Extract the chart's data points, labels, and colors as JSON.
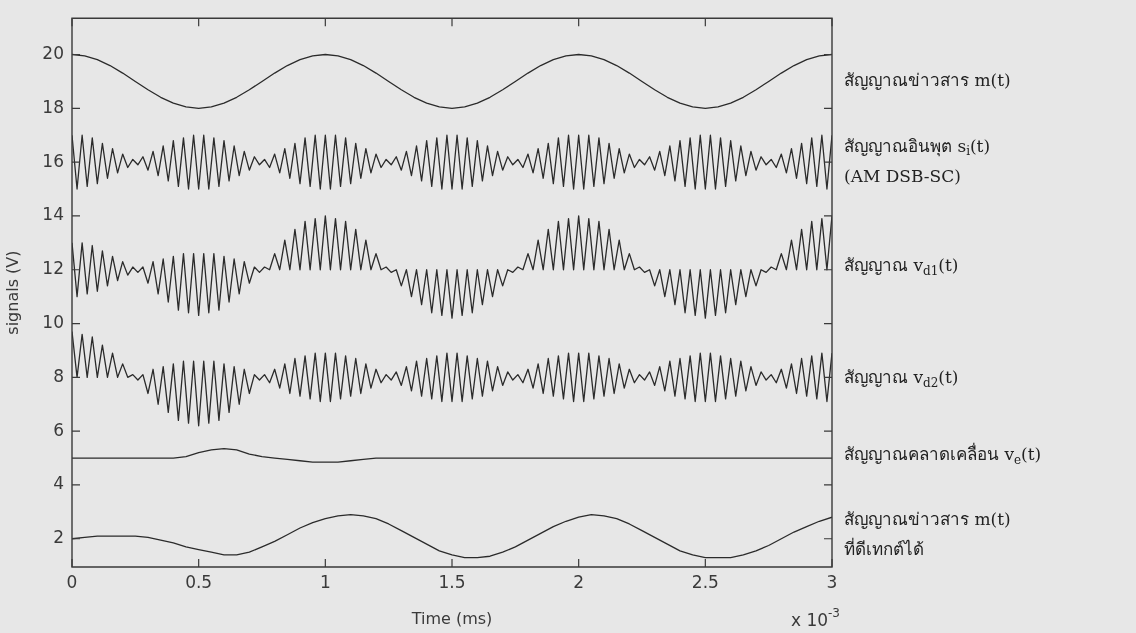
{
  "chart_data": {
    "type": "line",
    "xlabel": "Time (ms)",
    "ylabel": "signals (V)",
    "annotations": [
      "x 10$^{-3}$"
    ],
    "xlim": [
      0,
      3
    ],
    "xticks": [
      0,
      0.5,
      1,
      1.5,
      2,
      2.5,
      3
    ],
    "ylim": [
      0.95,
      21.35
    ],
    "yticks": [
      2,
      4,
      6,
      8,
      10,
      12,
      14,
      16,
      18,
      20
    ],
    "legend": "right",
    "x": [
      0,
      0.02,
      0.04,
      0.06,
      0.08,
      0.1,
      0.12,
      0.14,
      0.16,
      0.18,
      0.2,
      0.22,
      0.24,
      0.26,
      0.28,
      0.3,
      0.32,
      0.34,
      0.36,
      0.38,
      0.4,
      0.42,
      0.44,
      0.46,
      0.48,
      0.5,
      0.52,
      0.54,
      0.56,
      0.58,
      0.6,
      0.62,
      0.64,
      0.66,
      0.68,
      0.7,
      0.72,
      0.74,
      0.76,
      0.78,
      0.8,
      0.82,
      0.84,
      0.86,
      0.88,
      0.9,
      0.92,
      0.94,
      0.96,
      0.98,
      1,
      1.02,
      1.04,
      1.06,
      1.08,
      1.1,
      1.12,
      1.14,
      1.16,
      1.18,
      1.2,
      1.22,
      1.24,
      1.26,
      1.28,
      1.3,
      1.32,
      1.34,
      1.36,
      1.38,
      1.4,
      1.42,
      1.44,
      1.46,
      1.48,
      1.5,
      1.52,
      1.54,
      1.56,
      1.58,
      1.6,
      1.62,
      1.64,
      1.66,
      1.68,
      1.7,
      1.72,
      1.74,
      1.76,
      1.78,
      1.8,
      1.82,
      1.84,
      1.86,
      1.88,
      1.9,
      1.92,
      1.94,
      1.96,
      1.98,
      2,
      2.02,
      2.04,
      2.06,
      2.08,
      2.1,
      2.12,
      2.14,
      2.16,
      2.18,
      2.2,
      2.22,
      2.24,
      2.26,
      2.28,
      2.3,
      2.32,
      2.34,
      2.36,
      2.38,
      2.4,
      2.42,
      2.44,
      2.46,
      2.48,
      2.5,
      2.52,
      2.54,
      2.56,
      2.58,
      2.6,
      2.62,
      2.64,
      2.66,
      2.68,
      2.7,
      2.72,
      2.74,
      2.76,
      2.78,
      2.8,
      2.82,
      2.84,
      2.86,
      2.88,
      2.9,
      2.92,
      2.94,
      2.96,
      2.98,
      3
    ],
    "series": [
      {
        "name": "สัญญาณข่าวสาร m(t)",
        "color": "#2b2b2b",
        "x": [
          0,
          0.05,
          0.1,
          0.15,
          0.2,
          0.25,
          0.3,
          0.35,
          0.4,
          0.45,
          0.5,
          0.55,
          0.6,
          0.65,
          0.7,
          0.75,
          0.8,
          0.85,
          0.9,
          0.95,
          1,
          1.05,
          1.1,
          1.15,
          1.2,
          1.25,
          1.3,
          1.35,
          1.4,
          1.45,
          1.5,
          1.55,
          1.6,
          1.65,
          1.7,
          1.75,
          1.8,
          1.85,
          1.9,
          1.95,
          2,
          2.05,
          2.1,
          2.15,
          2.2,
          2.25,
          2.3,
          2.35,
          2.4,
          2.45,
          2.5,
          2.55,
          2.6,
          2.65,
          2.7,
          2.75,
          2.8,
          2.85,
          2.9,
          2.95,
          3
        ],
        "values": [
          20,
          19.95,
          19.81,
          19.59,
          19.31,
          19,
          18.69,
          18.41,
          18.19,
          18.05,
          18,
          18.05,
          18.19,
          18.41,
          18.69,
          19,
          19.31,
          19.59,
          19.81,
          19.95,
          20,
          19.95,
          19.81,
          19.59,
          19.31,
          19,
          18.69,
          18.41,
          18.19,
          18.05,
          18,
          18.05,
          18.19,
          18.41,
          18.69,
          19,
          19.31,
          19.59,
          19.81,
          19.95,
          20,
          19.95,
          19.81,
          19.59,
          19.31,
          19,
          18.69,
          18.41,
          18.19,
          18.05,
          18,
          18.05,
          18.19,
          18.41,
          18.69,
          19,
          19.31,
          19.59,
          19.81,
          19.95,
          20
        ]
      },
      {
        "name": "สัญญาณอินพุต s$_{i}$(t)\n(AM DSB-SC)",
        "color": "#2b2b2b",
        "values": [
          17,
          15,
          17,
          15.1,
          16.9,
          15.2,
          16.7,
          15.4,
          16.5,
          15.6,
          16.3,
          15.8,
          16.1,
          15.9,
          16.2,
          15.7,
          16.4,
          15.5,
          16.6,
          15.3,
          16.8,
          15.1,
          16.9,
          15,
          17,
          15,
          17,
          15,
          16.9,
          15.1,
          16.8,
          15.3,
          16.6,
          15.5,
          16.4,
          15.7,
          16.2,
          15.9,
          16.1,
          15.8,
          16.3,
          15.6,
          16.5,
          15.4,
          16.7,
          15.2,
          16.9,
          15.1,
          17,
          15,
          17,
          15,
          17,
          15.1,
          16.9,
          15.2,
          16.7,
          15.4,
          16.5,
          15.6,
          16.3,
          15.8,
          16.1,
          15.9,
          16.2,
          15.7,
          16.4,
          15.5,
          16.6,
          15.3,
          16.8,
          15.1,
          16.9,
          15,
          17,
          15,
          17,
          15,
          16.9,
          15.1,
          16.8,
          15.3,
          16.6,
          15.5,
          16.4,
          15.7,
          16.2,
          15.9,
          16.1,
          15.8,
          16.3,
          15.6,
          16.5,
          15.4,
          16.7,
          15.2,
          16.9,
          15.1,
          17,
          15,
          17,
          15,
          17,
          15.1,
          16.9,
          15.2,
          16.7,
          15.4,
          16.5,
          15.6,
          16.3,
          15.8,
          16.1,
          15.9,
          16.2,
          15.7,
          16.4,
          15.5,
          16.6,
          15.3,
          16.8,
          15.1,
          16.9,
          15,
          17,
          15,
          17,
          15,
          16.9,
          15.1,
          16.8,
          15.3,
          16.6,
          15.5,
          16.4,
          15.7,
          16.2,
          15.9,
          16.1,
          15.8,
          16.3,
          15.6,
          16.5,
          15.4,
          16.7,
          15.2,
          16.9,
          15.1,
          17,
          15,
          17
        ]
      },
      {
        "name": "สัญญาณ v$_{d1}$(t)",
        "color": "#2b2b2b",
        "values": [
          13,
          11,
          13,
          11.1,
          12.9,
          11.2,
          12.7,
          11.4,
          12.5,
          11.6,
          12.3,
          11.8,
          12.1,
          11.9,
          12.1,
          11.5,
          12.3,
          11.1,
          12.4,
          10.8,
          12.5,
          10.5,
          12.6,
          10.4,
          12.6,
          10.3,
          12.6,
          10.4,
          12.6,
          10.5,
          12.5,
          10.8,
          12.4,
          11.1,
          12.3,
          11.5,
          12.1,
          11.9,
          12.1,
          12,
          12.6,
          12,
          13.1,
          12,
          13.5,
          12,
          13.8,
          12,
          13.9,
          12,
          14,
          12,
          13.9,
          12,
          13.8,
          12,
          13.5,
          12,
          13.1,
          12,
          12.6,
          12,
          12.1,
          11.9,
          12,
          11.4,
          12,
          11,
          12,
          10.7,
          12,
          10.4,
          12,
          10.3,
          12,
          10.2,
          12,
          10.3,
          12,
          10.4,
          12,
          10.7,
          12,
          11,
          12,
          11.4,
          12,
          11.9,
          12.1,
          12,
          12.6,
          12,
          13.1,
          12,
          13.5,
          12,
          13.8,
          12,
          13.9,
          12,
          14,
          12,
          13.9,
          12,
          13.8,
          12,
          13.5,
          12,
          13.1,
          12,
          12.6,
          12,
          12.1,
          11.9,
          12,
          11.4,
          12,
          11,
          12,
          10.7,
          12,
          10.4,
          12,
          10.3,
          12,
          10.2,
          12,
          10.3,
          12,
          10.4,
          12,
          10.7,
          12,
          11,
          12,
          11.4,
          12,
          11.9,
          12.1,
          12,
          12.6,
          12,
          13.1,
          12,
          13.5,
          12,
          13.8,
          12,
          13.9,
          12,
          14
        ]
      },
      {
        "name": "สัญญาณ v$_{d2}$(t)",
        "color": "#2b2b2b",
        "values": [
          9.7,
          8,
          9.6,
          8,
          9.5,
          8,
          9.2,
          8,
          8.9,
          8,
          8.5,
          8,
          8.1,
          7.9,
          8.1,
          7.4,
          8.3,
          7,
          8.4,
          6.7,
          8.5,
          6.4,
          8.6,
          6.3,
          8.6,
          6.2,
          8.6,
          6.3,
          8.6,
          6.4,
          8.5,
          6.7,
          8.4,
          7,
          8.3,
          7.4,
          8.1,
          7.9,
          8.1,
          7.8,
          8.3,
          7.6,
          8.5,
          7.4,
          8.7,
          7.3,
          8.8,
          7.2,
          8.9,
          7.1,
          8.9,
          7.1,
          8.9,
          7.2,
          8.8,
          7.3,
          8.7,
          7.4,
          8.5,
          7.6,
          8.3,
          7.8,
          8.1,
          7.9,
          8.2,
          7.7,
          8.4,
          7.5,
          8.6,
          7.3,
          8.7,
          7.2,
          8.8,
          7.1,
          8.9,
          7.1,
          8.9,
          7.1,
          8.8,
          7.2,
          8.7,
          7.3,
          8.6,
          7.5,
          8.4,
          7.7,
          8.2,
          7.9,
          8.1,
          7.8,
          8.3,
          7.6,
          8.5,
          7.4,
          8.7,
          7.3,
          8.8,
          7.2,
          8.9,
          7.1,
          8.9,
          7.1,
          8.9,
          7.2,
          8.8,
          7.3,
          8.7,
          7.4,
          8.5,
          7.6,
          8.3,
          7.8,
          8.1,
          7.9,
          8.2,
          7.7,
          8.4,
          7.5,
          8.6,
          7.3,
          8.7,
          7.2,
          8.8,
          7.1,
          8.9,
          7.1,
          8.9,
          7.1,
          8.8,
          7.2,
          8.7,
          7.3,
          8.6,
          7.5,
          8.4,
          7.7,
          8.2,
          7.9,
          8.1,
          7.8,
          8.3,
          7.6,
          8.5,
          7.4,
          8.7,
          7.3,
          8.8,
          7.2,
          8.9,
          7.1,
          8.9
        ]
      },
      {
        "name": "สัญญาณคลาดเคลื่อน v$_{e}$(t)",
        "color": "#2b2b2b",
        "x": [
          0,
          0.05,
          0.1,
          0.15,
          0.2,
          0.25,
          0.3,
          0.35,
          0.4,
          0.45,
          0.5,
          0.55,
          0.6,
          0.65,
          0.7,
          0.75,
          0.8,
          0.85,
          0.9,
          0.95,
          1,
          1.05,
          1.1,
          1.15,
          1.2,
          1.25,
          1.3,
          1.35,
          1.4,
          1.45,
          1.5,
          1.55,
          1.6,
          1.65,
          1.7,
          1.75,
          1.8,
          1.85,
          1.9,
          1.95,
          2,
          2.05,
          2.1,
          2.15,
          2.2,
          2.25,
          2.3,
          2.35,
          2.4,
          2.45,
          2.5,
          2.55,
          2.6,
          2.65,
          2.7,
          2.75,
          2.8,
          2.85,
          2.9,
          2.95,
          3
        ],
        "values": [
          5,
          5,
          5,
          5,
          5,
          5,
          5,
          5,
          5,
          5.05,
          5.2,
          5.3,
          5.35,
          5.3,
          5.15,
          5.05,
          5,
          4.95,
          4.9,
          4.85,
          4.85,
          4.85,
          4.9,
          4.95,
          5,
          5,
          5,
          5,
          5,
          5,
          5,
          5,
          5,
          5,
          5,
          5,
          5,
          5,
          5,
          5,
          5,
          5,
          5,
          5,
          5,
          5,
          5,
          5,
          5,
          5,
          5,
          5,
          5,
          5,
          5,
          5,
          5,
          5,
          5,
          5,
          5
        ]
      },
      {
        "name": "สัญญาณข่าวสาร m(t)\nที่ดีเทกต์ได้",
        "color": "#2b2b2b",
        "x": [
          0,
          0.05,
          0.1,
          0.15,
          0.2,
          0.25,
          0.3,
          0.35,
          0.4,
          0.45,
          0.5,
          0.55,
          0.6,
          0.65,
          0.7,
          0.75,
          0.8,
          0.85,
          0.9,
          0.95,
          1,
          1.05,
          1.1,
          1.15,
          1.2,
          1.25,
          1.3,
          1.35,
          1.4,
          1.45,
          1.5,
          1.55,
          1.6,
          1.65,
          1.7,
          1.75,
          1.8,
          1.85,
          1.9,
          1.95,
          2,
          2.05,
          2.1,
          2.15,
          2.2,
          2.25,
          2.3,
          2.35,
          2.4,
          2.45,
          2.5,
          2.55,
          2.6,
          2.65,
          2.7,
          2.75,
          2.8,
          2.85,
          2.9,
          2.95,
          3
        ],
        "values": [
          2,
          2.05,
          2.1,
          2.1,
          2.1,
          2.1,
          2.05,
          1.95,
          1.85,
          1.7,
          1.6,
          1.5,
          1.4,
          1.4,
          1.5,
          1.7,
          1.9,
          2.15,
          2.4,
          2.6,
          2.75,
          2.85,
          2.9,
          2.85,
          2.75,
          2.55,
          2.3,
          2.05,
          1.8,
          1.55,
          1.4,
          1.3,
          1.3,
          1.35,
          1.5,
          1.7,
          1.95,
          2.2,
          2.45,
          2.65,
          2.8,
          2.9,
          2.85,
          2.75,
          2.55,
          2.3,
          2.05,
          1.8,
          1.55,
          1.4,
          1.3,
          1.3,
          1.3,
          1.4,
          1.55,
          1.75,
          2,
          2.25,
          2.45,
          2.65,
          2.8
        ]
      }
    ]
  }
}
